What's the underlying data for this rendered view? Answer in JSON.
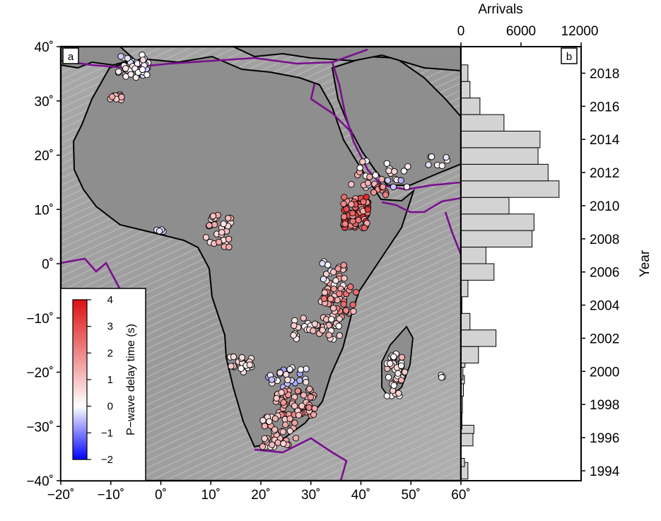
{
  "chart_data": [
    {
      "panel": "a",
      "type": "scatter",
      "xticks": [
        "−20˚",
        "−10˚",
        "0˚",
        "10˚",
        "20˚",
        "30˚",
        "40˚",
        "50˚",
        "60˚"
      ],
      "yticks": [
        "40˚",
        "30˚",
        "20˚",
        "10˚",
        "0˚",
        "−10˚",
        "−20˚",
        "−30˚",
        "−40˚"
      ],
      "xlim": [
        -20,
        60
      ],
      "ylim": [
        -40,
        40
      ],
      "colorbar": {
        "label": "P−wave delay time (s)",
        "ticks": [
          "4",
          "3",
          "2",
          "1",
          "0",
          "−1",
          "−2"
        ],
        "range": [
          -2,
          4
        ],
        "colors": [
          "#0000ff",
          "#ffffff",
          "#dd1111"
        ]
      },
      "station_clusters": [
        {
          "lon": -5.5,
          "lat": 36.2,
          "spread": [
            3.0,
            2.3
          ],
          "n": 40,
          "delay": [
            -0.5,
            0.6
          ]
        },
        {
          "lon": -8.5,
          "lat": 30.7,
          "spread": [
            1.6,
            0.7
          ],
          "n": 10,
          "delay": [
            0.5,
            1.5
          ]
        },
        {
          "lon": 43.0,
          "lat": 16.5,
          "spread": [
            6.5,
            2.5
          ],
          "n": 28,
          "delay": [
            -0.7,
            1.5
          ]
        },
        {
          "lon": 55.0,
          "lat": 19.0,
          "spread": [
            2.5,
            1.0
          ],
          "n": 7,
          "delay": [
            -0.4,
            0.3
          ]
        },
        {
          "lon": 39.0,
          "lat": 9.5,
          "spread": [
            2.5,
            3.0
          ],
          "n": 85,
          "delay": [
            1.3,
            3.6
          ]
        },
        {
          "lon": 44.0,
          "lat": 13.5,
          "spread": [
            1.5,
            1.0
          ],
          "n": 10,
          "delay": [
            1.5,
            2.5
          ]
        },
        {
          "lon": 11.5,
          "lat": 6.0,
          "spread": [
            2.5,
            3.0
          ],
          "n": 30,
          "delay": [
            0.2,
            1.5
          ]
        },
        {
          "lon": 0.0,
          "lat": 6.2,
          "spread": [
            1.0,
            0.3
          ],
          "n": 4,
          "delay": [
            -0.5,
            0.0
          ]
        },
        {
          "lon": 34.5,
          "lat": -3.0,
          "spread": [
            2.5,
            4.0
          ],
          "n": 35,
          "delay": [
            -0.3,
            2.0
          ]
        },
        {
          "lon": 36.0,
          "lat": -7.0,
          "spread": [
            3.5,
            3.0
          ],
          "n": 40,
          "delay": [
            0.8,
            2.6
          ]
        },
        {
          "lon": 31.0,
          "lat": -12.0,
          "spread": [
            5.0,
            2.0
          ],
          "n": 35,
          "delay": [
            0.0,
            1.3
          ]
        },
        {
          "lon": 16.0,
          "lat": -18.5,
          "spread": [
            2.5,
            1.5
          ],
          "n": 22,
          "delay": [
            0.0,
            1.0
          ]
        },
        {
          "lon": 25.5,
          "lat": -21.0,
          "spread": [
            4.0,
            2.0
          ],
          "n": 25,
          "delay": [
            -0.8,
            0.6
          ]
        },
        {
          "lon": 27.0,
          "lat": -25.5,
          "spread": [
            4.0,
            2.5
          ],
          "n": 60,
          "delay": [
            0.8,
            2.3
          ]
        },
        {
          "lon": 23.5,
          "lat": -30.5,
          "spread": [
            3.5,
            2.5
          ],
          "n": 30,
          "delay": [
            0.4,
            1.6
          ]
        },
        {
          "lon": 47.0,
          "lat": -20.5,
          "spread": [
            1.8,
            4.0
          ],
          "n": 40,
          "delay": [
            -0.3,
            1.3
          ]
        },
        {
          "lon": 56.0,
          "lat": -20.8,
          "spread": [
            0.4,
            0.3
          ],
          "n": 3,
          "delay": [
            0.0,
            0.2
          ]
        },
        {
          "lon": 23.0,
          "lat": -33.0,
          "spread": [
            3.0,
            1.0
          ],
          "n": 12,
          "delay": [
            0.3,
            1.4
          ]
        }
      ]
    },
    {
      "panel": "b",
      "type": "bar",
      "orientation": "horizontal",
      "top_axis_label": "Arrivals",
      "right_axis_label": "Year",
      "xticks": [
        "0",
        "6000",
        "12000"
      ],
      "xlim": [
        0,
        12000
      ],
      "ylim": [
        1993.4,
        2019.6
      ],
      "year_ticks": [
        "1994",
        "1996",
        "1998",
        "2000",
        "2002",
        "2004",
        "2006",
        "2008",
        "2010",
        "2012",
        "2014",
        "2016",
        "2018"
      ],
      "bins": [
        {
          "year": 1994.0,
          "arrivals": 700
        },
        {
          "year": 1994.5,
          "arrivals": 350
        },
        {
          "year": 1996.0,
          "arrivals": 1200
        },
        {
          "year": 1996.5,
          "arrivals": 1300
        },
        {
          "year": 1997.0,
          "arrivals": 100
        },
        {
          "year": 1997.5,
          "arrivals": 100
        },
        {
          "year": 1998.0,
          "arrivals": 150
        },
        {
          "year": 1999.0,
          "arrivals": 250
        },
        {
          "year": 1999.5,
          "arrivals": 350
        },
        {
          "year": 2000.0,
          "arrivals": 200
        },
        {
          "year": 2000.5,
          "arrivals": 400
        },
        {
          "year": 2001.0,
          "arrivals": 1750
        },
        {
          "year": 2002.0,
          "arrivals": 3500
        },
        {
          "year": 2003.0,
          "arrivals": 900
        },
        {
          "year": 2004.0,
          "arrivals": 100
        },
        {
          "year": 2005.0,
          "arrivals": 700
        },
        {
          "year": 2006.0,
          "arrivals": 3300
        },
        {
          "year": 2007.0,
          "arrivals": 2500
        },
        {
          "year": 2008.0,
          "arrivals": 7100
        },
        {
          "year": 2009.0,
          "arrivals": 7300
        },
        {
          "year": 2010.0,
          "arrivals": 4800
        },
        {
          "year": 2011.0,
          "arrivals": 9800
        },
        {
          "year": 2012.0,
          "arrivals": 8700
        },
        {
          "year": 2013.0,
          "arrivals": 7700
        },
        {
          "year": 2014.0,
          "arrivals": 7900
        },
        {
          "year": 2015.0,
          "arrivals": 4300
        },
        {
          "year": 2016.0,
          "arrivals": 1900
        },
        {
          "year": 2017.0,
          "arrivals": 900
        },
        {
          "year": 2018.0,
          "arrivals": 700
        }
      ]
    }
  ]
}
